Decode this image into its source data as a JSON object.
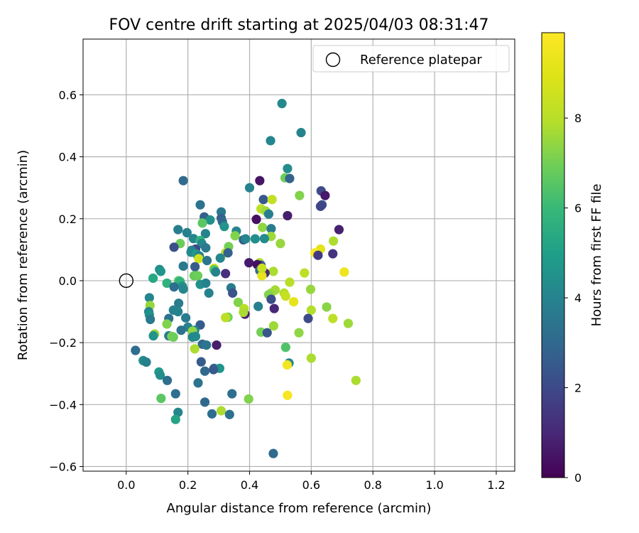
{
  "chart_data": {
    "type": "scatter",
    "title": "FOV centre drift starting at 2025/04/03 08:31:47",
    "xlabel": "Angular distance from reference (arcmin)",
    "ylabel": "Rotation from reference (arcmin)",
    "xlim": [
      -0.14,
      1.26
    ],
    "ylim": [
      -0.615,
      0.78
    ],
    "xticks": [
      0.0,
      0.2,
      0.4,
      0.6,
      0.8,
      1.0,
      1.2
    ],
    "xtick_labels": [
      "0.0",
      "0.2",
      "0.4",
      "0.6",
      "0.8",
      "1.0",
      "1.2"
    ],
    "yticks": [
      -0.6,
      -0.4,
      -0.2,
      0.0,
      0.2,
      0.4,
      0.6
    ],
    "ytick_labels": [
      "−0.6",
      "−0.4",
      "−0.2",
      "0.0",
      "0.2",
      "0.4",
      "0.6"
    ],
    "grid": true,
    "legend": {
      "placement": "upper right",
      "entries": [
        "Reference platepar"
      ]
    },
    "reference_point": {
      "x": 0.0,
      "y": 0.0
    },
    "colorbar": {
      "label": "Hours from first FF file",
      "colormap": "viridis",
      "range": [
        0,
        9.9
      ],
      "ticks": [
        0,
        2,
        4,
        6,
        8
      ],
      "tick_labels": [
        "0",
        "2",
        "4",
        "6",
        "8"
      ]
    },
    "points": [
      {
        "x": 0.505,
        "y": 0.572,
        "c": 4.2
      },
      {
        "x": 0.567,
        "y": 0.478,
        "c": 4.0
      },
      {
        "x": 0.468,
        "y": 0.452,
        "c": 4.1
      },
      {
        "x": 0.523,
        "y": 0.362,
        "c": 4.3
      },
      {
        "x": 0.515,
        "y": 0.332,
        "c": 6.9
      },
      {
        "x": 0.53,
        "y": 0.33,
        "c": 2.8
      },
      {
        "x": 0.185,
        "y": 0.323,
        "c": 3.1
      },
      {
        "x": 0.433,
        "y": 0.323,
        "c": 0.5
      },
      {
        "x": 0.4,
        "y": 0.3,
        "c": 4.0
      },
      {
        "x": 0.632,
        "y": 0.29,
        "c": 2.0
      },
      {
        "x": 0.645,
        "y": 0.275,
        "c": 0.6
      },
      {
        "x": 0.562,
        "y": 0.275,
        "c": 7.2
      },
      {
        "x": 0.445,
        "y": 0.262,
        "c": 2.5
      },
      {
        "x": 0.473,
        "y": 0.262,
        "c": 8.3
      },
      {
        "x": 0.635,
        "y": 0.245,
        "c": 2.3
      },
      {
        "x": 0.24,
        "y": 0.245,
        "c": 3.4
      },
      {
        "x": 0.63,
        "y": 0.24,
        "c": 1.9
      },
      {
        "x": 0.437,
        "y": 0.232,
        "c": 8.1
      },
      {
        "x": 0.452,
        "y": 0.225,
        "c": 7.6
      },
      {
        "x": 0.308,
        "y": 0.222,
        "c": 3.6
      },
      {
        "x": 0.462,
        "y": 0.215,
        "c": 3.8
      },
      {
        "x": 0.523,
        "y": 0.21,
        "c": 0.7
      },
      {
        "x": 0.253,
        "y": 0.206,
        "c": 2.7
      },
      {
        "x": 0.308,
        "y": 0.202,
        "c": 2.8
      },
      {
        "x": 0.422,
        "y": 0.198,
        "c": 0.4
      },
      {
        "x": 0.272,
        "y": 0.196,
        "c": 4.5
      },
      {
        "x": 0.312,
        "y": 0.19,
        "c": 3.0
      },
      {
        "x": 0.247,
        "y": 0.186,
        "c": 6.6
      },
      {
        "x": 0.318,
        "y": 0.175,
        "c": 4.6
      },
      {
        "x": 0.442,
        "y": 0.172,
        "c": 7.4
      },
      {
        "x": 0.47,
        "y": 0.168,
        "c": 3.7
      },
      {
        "x": 0.69,
        "y": 0.165,
        "c": 0.8
      },
      {
        "x": 0.168,
        "y": 0.165,
        "c": 3.8
      },
      {
        "x": 0.357,
        "y": 0.16,
        "c": 4.1
      },
      {
        "x": 0.197,
        "y": 0.155,
        "c": 3.9
      },
      {
        "x": 0.257,
        "y": 0.152,
        "c": 4.0
      },
      {
        "x": 0.353,
        "y": 0.145,
        "c": 7.2
      },
      {
        "x": 0.47,
        "y": 0.143,
        "c": 7.6
      },
      {
        "x": 0.38,
        "y": 0.132,
        "c": 2.6
      },
      {
        "x": 0.448,
        "y": 0.136,
        "c": 4.3
      },
      {
        "x": 0.387,
        "y": 0.135,
        "c": 4.1
      },
      {
        "x": 0.418,
        "y": 0.135,
        "c": 4.4
      },
      {
        "x": 0.218,
        "y": 0.136,
        "c": 4.1
      },
      {
        "x": 0.24,
        "y": 0.13,
        "c": 5.8
      },
      {
        "x": 0.672,
        "y": 0.128,
        "c": 7.8
      },
      {
        "x": 0.5,
        "y": 0.12,
        "c": 7.5
      },
      {
        "x": 0.245,
        "y": 0.12,
        "c": 4.2
      },
      {
        "x": 0.175,
        "y": 0.12,
        "c": 6.9
      },
      {
        "x": 0.332,
        "y": 0.11,
        "c": 7.0
      },
      {
        "x": 0.155,
        "y": 0.108,
        "c": 2.2
      },
      {
        "x": 0.63,
        "y": 0.102,
        "c": 9.1
      },
      {
        "x": 0.258,
        "y": 0.106,
        "c": 3.6
      },
      {
        "x": 0.225,
        "y": 0.102,
        "c": 1.9
      },
      {
        "x": 0.212,
        "y": 0.098,
        "c": 3.9
      },
      {
        "x": 0.21,
        "y": 0.092,
        "c": 4.2
      },
      {
        "x": 0.322,
        "y": 0.09,
        "c": 8.0
      },
      {
        "x": 0.612,
        "y": 0.09,
        "c": 9.8
      },
      {
        "x": 0.33,
        "y": 0.09,
        "c": 2.8
      },
      {
        "x": 0.67,
        "y": 0.087,
        "c": 1.3
      },
      {
        "x": 0.228,
        "y": 0.086,
        "c": 4.8
      },
      {
        "x": 0.622,
        "y": 0.082,
        "c": 1.5
      },
      {
        "x": 0.237,
        "y": 0.08,
        "c": 3.9
      },
      {
        "x": 0.305,
        "y": 0.073,
        "c": 4.1
      },
      {
        "x": 0.235,
        "y": 0.071,
        "c": 8.6
      },
      {
        "x": 0.262,
        "y": 0.065,
        "c": 3.5
      },
      {
        "x": 0.398,
        "y": 0.058,
        "c": 0.6
      },
      {
        "x": 0.432,
        "y": 0.058,
        "c": 7.8
      },
      {
        "x": 0.437,
        "y": 0.05,
        "c": 2.6
      },
      {
        "x": 0.425,
        "y": 0.052,
        "c": 0.4
      },
      {
        "x": 0.185,
        "y": 0.047,
        "c": 3.6
      },
      {
        "x": 0.223,
        "y": 0.045,
        "c": 2.6
      },
      {
        "x": 0.285,
        "y": 0.04,
        "c": 8.6
      },
      {
        "x": 0.285,
        "y": 0.035,
        "c": 6.4
      },
      {
        "x": 0.433,
        "y": 0.033,
        "c": 3.2
      },
      {
        "x": 0.29,
        "y": 0.028,
        "c": 4.0
      },
      {
        "x": 0.707,
        "y": 0.028,
        "c": 9.4
      },
      {
        "x": 0.477,
        "y": 0.03,
        "c": 7.8
      },
      {
        "x": 0.578,
        "y": 0.025,
        "c": 8.1
      },
      {
        "x": 0.45,
        "y": 0.025,
        "c": 1.0
      },
      {
        "x": 0.322,
        "y": 0.023,
        "c": 1.2
      },
      {
        "x": 0.22,
        "y": 0.016,
        "c": 6.8
      },
      {
        "x": 0.232,
        "y": 0.016,
        "c": 6.9
      },
      {
        "x": 0.44,
        "y": 0.016,
        "c": 9.2
      },
      {
        "x": 0.44,
        "y": 0.04,
        "c": 8.4
      },
      {
        "x": 0.108,
        "y": 0.036,
        "c": 4.4
      },
      {
        "x": 0.112,
        "y": 0.03,
        "c": 4.6
      },
      {
        "x": 0.087,
        "y": 0.008,
        "c": 5.3
      },
      {
        "x": 0.17,
        "y": 0.0,
        "c": 6.4
      },
      {
        "x": 0.175,
        "y": -0.003,
        "c": 5.8
      },
      {
        "x": 0.132,
        "y": -0.008,
        "c": 5.7
      },
      {
        "x": 0.53,
        "y": -0.005,
        "c": 8.0
      },
      {
        "x": 0.24,
        "y": -0.012,
        "c": 4.5
      },
      {
        "x": 0.258,
        "y": -0.008,
        "c": 4.0
      },
      {
        "x": 0.182,
        "y": -0.018,
        "c": 4.5
      },
      {
        "x": 0.155,
        "y": -0.02,
        "c": 3.2
      },
      {
        "x": 0.34,
        "y": -0.023,
        "c": 3.7
      },
      {
        "x": 0.185,
        "y": -0.027,
        "c": 4.1
      },
      {
        "x": 0.598,
        "y": -0.028,
        "c": 7.5
      },
      {
        "x": 0.268,
        "y": -0.04,
        "c": 4.0
      },
      {
        "x": 0.483,
        "y": -0.03,
        "c": 7.7
      },
      {
        "x": 0.47,
        "y": -0.04,
        "c": 7.6
      },
      {
        "x": 0.462,
        "y": -0.045,
        "c": 7.2
      },
      {
        "x": 0.345,
        "y": -0.04,
        "c": 2.3
      },
      {
        "x": 0.512,
        "y": -0.04,
        "c": 7.9
      },
      {
        "x": 0.517,
        "y": -0.05,
        "c": 8.4
      },
      {
        "x": 0.075,
        "y": -0.055,
        "c": 4.1
      },
      {
        "x": 0.47,
        "y": -0.06,
        "c": 2.1
      },
      {
        "x": 0.543,
        "y": -0.068,
        "c": 9.2
      },
      {
        "x": 0.363,
        "y": -0.07,
        "c": 7.2
      },
      {
        "x": 0.17,
        "y": -0.073,
        "c": 3.7
      },
      {
        "x": 0.077,
        "y": -0.08,
        "c": 7.5
      },
      {
        "x": 0.428,
        "y": -0.083,
        "c": 3.9
      },
      {
        "x": 0.65,
        "y": -0.085,
        "c": 7.3
      },
      {
        "x": 0.382,
        "y": -0.09,
        "c": 8.0
      },
      {
        "x": 0.48,
        "y": -0.09,
        "c": 1.0
      },
      {
        "x": 0.6,
        "y": -0.095,
        "c": 7.9
      },
      {
        "x": 0.153,
        "y": -0.095,
        "c": 4.0
      },
      {
        "x": 0.073,
        "y": -0.1,
        "c": 4.1
      },
      {
        "x": 0.168,
        "y": -0.1,
        "c": 4.0
      },
      {
        "x": 0.075,
        "y": -0.11,
        "c": 4.5
      },
      {
        "x": 0.385,
        "y": -0.108,
        "c": 0.8
      },
      {
        "x": 0.38,
        "y": -0.102,
        "c": 7.8
      },
      {
        "x": 0.33,
        "y": -0.118,
        "c": 7.0
      },
      {
        "x": 0.322,
        "y": -0.119,
        "c": 8.1
      },
      {
        "x": 0.193,
        "y": -0.12,
        "c": 3.7
      },
      {
        "x": 0.138,
        "y": -0.122,
        "c": 3.4
      },
      {
        "x": 0.59,
        "y": -0.122,
        "c": 2.0
      },
      {
        "x": 0.67,
        "y": -0.122,
        "c": 8.1
      },
      {
        "x": 0.078,
        "y": -0.125,
        "c": 3.6
      },
      {
        "x": 0.72,
        "y": -0.138,
        "c": 7.6
      },
      {
        "x": 0.132,
        "y": -0.14,
        "c": 7.2
      },
      {
        "x": 0.24,
        "y": -0.143,
        "c": 2.6
      },
      {
        "x": 0.478,
        "y": -0.146,
        "c": 7.6
      },
      {
        "x": 0.2,
        "y": -0.15,
        "c": 4.0
      },
      {
        "x": 0.178,
        "y": -0.16,
        "c": 3.3
      },
      {
        "x": 0.222,
        "y": -0.16,
        "c": 4.1
      },
      {
        "x": 0.215,
        "y": -0.163,
        "c": 7.4
      },
      {
        "x": 0.437,
        "y": -0.166,
        "c": 7.0
      },
      {
        "x": 0.457,
        "y": -0.168,
        "c": 2.4
      },
      {
        "x": 0.56,
        "y": -0.168,
        "c": 7.4
      },
      {
        "x": 0.092,
        "y": -0.172,
        "c": 7.6
      },
      {
        "x": 0.088,
        "y": -0.178,
        "c": 4.6
      },
      {
        "x": 0.138,
        "y": -0.178,
        "c": 3.8
      },
      {
        "x": 0.148,
        "y": -0.18,
        "c": 7.2
      },
      {
        "x": 0.225,
        "y": -0.18,
        "c": 4.3
      },
      {
        "x": 0.153,
        "y": -0.182,
        "c": 6.9
      },
      {
        "x": 0.215,
        "y": -0.182,
        "c": 4.2
      },
      {
        "x": 0.247,
        "y": -0.205,
        "c": 3.0
      },
      {
        "x": 0.26,
        "y": -0.208,
        "c": 3.5
      },
      {
        "x": 0.293,
        "y": -0.208,
        "c": 0.7
      },
      {
        "x": 0.517,
        "y": -0.215,
        "c": 6.4
      },
      {
        "x": 0.222,
        "y": -0.22,
        "c": 7.8
      },
      {
        "x": 0.03,
        "y": -0.225,
        "c": 3.2
      },
      {
        "x": 0.6,
        "y": -0.25,
        "c": 7.8
      },
      {
        "x": 0.055,
        "y": -0.258,
        "c": 4.4
      },
      {
        "x": 0.065,
        "y": -0.263,
        "c": 3.9
      },
      {
        "x": 0.243,
        "y": -0.262,
        "c": 2.6
      },
      {
        "x": 0.528,
        "y": -0.266,
        "c": 4.1
      },
      {
        "x": 0.522,
        "y": -0.272,
        "c": 9.6
      },
      {
        "x": 0.285,
        "y": -0.283,
        "c": 3.1
      },
      {
        "x": 0.303,
        "y": -0.283,
        "c": 4.6
      },
      {
        "x": 0.283,
        "y": -0.287,
        "c": 2.5
      },
      {
        "x": 0.255,
        "y": -0.292,
        "c": 3.0
      },
      {
        "x": 0.106,
        "y": -0.295,
        "c": 4.8
      },
      {
        "x": 0.11,
        "y": -0.305,
        "c": 4.4
      },
      {
        "x": 0.745,
        "y": -0.322,
        "c": 7.8
      },
      {
        "x": 0.133,
        "y": -0.322,
        "c": 3.2
      },
      {
        "x": 0.233,
        "y": -0.33,
        "c": 3.4
      },
      {
        "x": 0.16,
        "y": -0.365,
        "c": 3.2
      },
      {
        "x": 0.343,
        "y": -0.365,
        "c": 3.2
      },
      {
        "x": 0.523,
        "y": -0.37,
        "c": 9.7
      },
      {
        "x": 0.113,
        "y": -0.38,
        "c": 6.6
      },
      {
        "x": 0.397,
        "y": -0.382,
        "c": 7.2
      },
      {
        "x": 0.255,
        "y": -0.392,
        "c": 3.0
      },
      {
        "x": 0.308,
        "y": -0.42,
        "c": 7.8
      },
      {
        "x": 0.168,
        "y": -0.425,
        "c": 4.1
      },
      {
        "x": 0.278,
        "y": -0.43,
        "c": 3.2
      },
      {
        "x": 0.335,
        "y": -0.432,
        "c": 3.3
      },
      {
        "x": 0.16,
        "y": -0.448,
        "c": 5.2
      },
      {
        "x": 0.477,
        "y": -0.558,
        "c": 3.1
      }
    ]
  }
}
